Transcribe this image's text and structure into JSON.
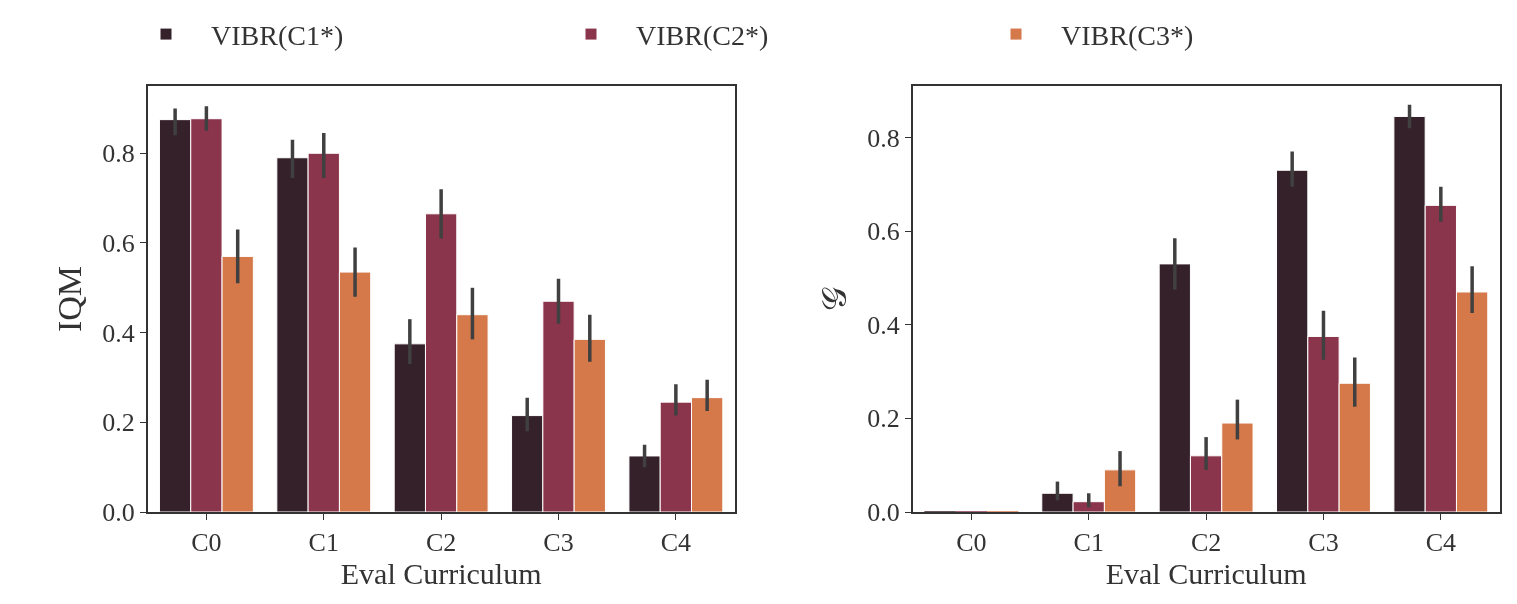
{
  "chart_data": [
    {
      "type": "bar",
      "xlabel": "Eval Curriculum",
      "ylabel": "IQM",
      "categories": [
        "C0",
        "C1",
        "C2",
        "C3",
        "C4"
      ],
      "ylim": [
        0,
        0.95
      ],
      "yticks": [
        {
          "value": 0,
          "label": "0.0"
        },
        0.2,
        0.4,
        0.6,
        0.8
      ],
      "legend": "top",
      "series": [
        {
          "name": "VIBR(C1*)",
          "color": "#35212a",
          "values": [
            0.875,
            0.79,
            0.375,
            0.215,
            0.125
          ],
          "errors": [
            [
              0.84,
              0.9
            ],
            [
              0.745,
              0.83
            ],
            [
              0.33,
              0.43
            ],
            [
              0.18,
              0.255
            ],
            [
              0.1,
              0.15
            ]
          ]
        },
        {
          "name": "VIBR(C2*)",
          "color": "#8b354c",
          "values": [
            0.877,
            0.8,
            0.665,
            0.47,
            0.245
          ],
          "errors": [
            [
              0.85,
              0.905
            ],
            [
              0.745,
              0.845
            ],
            [
              0.61,
              0.72
            ],
            [
              0.42,
              0.52
            ],
            [
              0.215,
              0.285
            ]
          ]
        },
        {
          "name": "VIBR(C3*)",
          "color": "#d5784a",
          "values": [
            0.57,
            0.535,
            0.44,
            0.385,
            0.255
          ],
          "errors": [
            [
              0.51,
              0.63
            ],
            [
              0.48,
              0.59
            ],
            [
              0.385,
              0.5
            ],
            [
              0.335,
              0.44
            ],
            [
              0.225,
              0.295
            ]
          ]
        }
      ]
    },
    {
      "type": "bar",
      "xlabel": "Eval Curriculum",
      "ylabel": "𝒢",
      "categories": [
        "C0",
        "C1",
        "C2",
        "C3",
        "C4"
      ],
      "ylim": [
        0,
        0.91
      ],
      "yticks": [
        {
          "value": 0,
          "label": "0.0"
        },
        0.2,
        0.4,
        0.6,
        0.8
      ],
      "series": [
        {
          "color": "#35212a",
          "values": [
            0,
            0.04,
            0.53,
            0.73,
            0.845
          ],
          "errors": [
            null,
            [
              0.025,
              0.065
            ],
            [
              0.475,
              0.585
            ],
            [
              0.695,
              0.77
            ],
            [
              0.82,
              0.87
            ]
          ]
        },
        {
          "color": "#8b354c",
          "values": [
            0,
            0.022,
            0.12,
            0.375,
            0.655
          ],
          "errors": [
            null,
            [
              0.01,
              0.04
            ],
            [
              0.09,
              0.16
            ],
            [
              0.325,
              0.43
            ],
            [
              0.62,
              0.695
            ]
          ]
        },
        {
          "color": "#d5784a",
          "values": [
            0,
            0.09,
            0.19,
            0.275,
            0.47
          ],
          "errors": [
            null,
            [
              0.055,
              0.13
            ],
            [
              0.155,
              0.24
            ],
            [
              0.225,
              0.33
            ],
            [
              0.425,
              0.525
            ]
          ]
        }
      ]
    }
  ]
}
